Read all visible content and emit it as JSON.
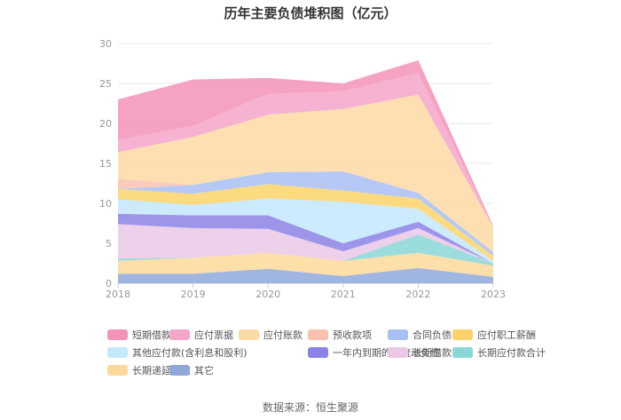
{
  "chart_data": {
    "type": "area",
    "stacked": true,
    "title": "历年主要负债堆积图（亿元）",
    "x": [
      "2018",
      "2019",
      "2020",
      "2021",
      "2022",
      "2023"
    ],
    "ylim": [
      0,
      30
    ],
    "yticks": [
      0,
      5,
      10,
      15,
      20,
      25,
      30
    ],
    "grid": true,
    "legend_position": "bottom",
    "series": [
      {
        "name": "其它",
        "color": "#8fa8d9",
        "values": [
          1.2,
          1.2,
          1.8,
          0.9,
          1.9,
          0.8
        ]
      },
      {
        "name": "长期递延收益",
        "color": "#fcd99a",
        "values": [
          1.6,
          2.0,
          2.0,
          1.9,
          1.9,
          1.4
        ]
      },
      {
        "name": "长期应付款合计",
        "color": "#89d7d6",
        "values": [
          0.3,
          0.0,
          0.0,
          0.0,
          2.3,
          0.3
        ]
      },
      {
        "name": "长期借款",
        "color": "#eac8e6",
        "values": [
          4.3,
          3.7,
          3.0,
          1.2,
          0.8,
          0.0
        ]
      },
      {
        "name": "一年内到期的非流动负债",
        "color": "#8b83e6",
        "values": [
          1.3,
          1.6,
          1.7,
          1.0,
          0.8,
          0.0
        ]
      },
      {
        "name": "其他应付款(含利息和股利)",
        "color": "#c3e8fb",
        "values": [
          1.8,
          1.3,
          2.1,
          5.2,
          1.6,
          0.3
        ]
      },
      {
        "name": "应付职工薪酬",
        "color": "#fbd36a",
        "values": [
          1.3,
          1.4,
          1.8,
          1.4,
          1.3,
          0.6
        ]
      },
      {
        "name": "合同负债",
        "color": "#a9c0f5",
        "values": [
          0.0,
          1.1,
          1.5,
          2.4,
          0.7,
          0.5
        ]
      },
      {
        "name": "预收款项",
        "color": "#f9c2b0",
        "values": [
          1.3,
          0.0,
          0.0,
          0.0,
          0.0,
          0.0
        ]
      },
      {
        "name": "应付账款",
        "color": "#fdd9a4",
        "values": [
          3.3,
          6.0,
          7.2,
          7.8,
          12.3,
          3.1
        ]
      },
      {
        "name": "应付票据",
        "color": "#f5a6c9",
        "values": [
          1.5,
          1.4,
          2.6,
          2.2,
          2.7,
          0.1
        ]
      },
      {
        "name": "短期借款",
        "color": "#f592b8",
        "values": [
          5.1,
          5.8,
          2.0,
          1.0,
          1.6,
          0.1
        ]
      }
    ]
  },
  "legend_order": [
    "短期借款",
    "应付票据",
    "应付账款",
    "预收款项",
    "合同负债",
    "应付职工薪酬",
    "其他应付款(含利息和股利)",
    "一年内到期的非流动负债",
    "长期借款",
    "长期应付款合计",
    "长期递延收益",
    "其它"
  ],
  "source": "数据来源：恒生聚源"
}
